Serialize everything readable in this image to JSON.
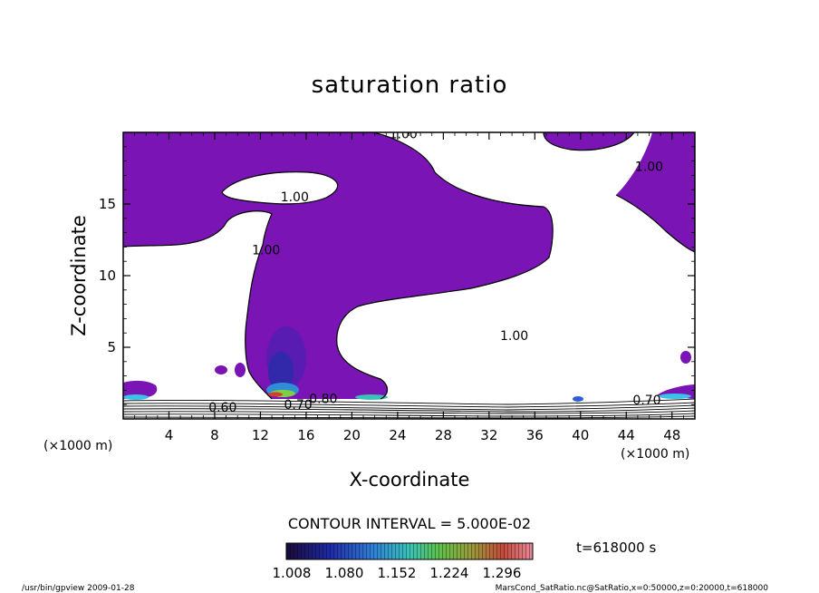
{
  "chart_data": {
    "type": "heatmap",
    "title": "saturation ratio",
    "xlabel": "X-coordinate",
    "ylabel": "Z-coordinate",
    "x_unit": "(×1000 m)",
    "x_unit_right": "(×1000 m)",
    "xlim": [
      0,
      50
    ],
    "ylim": [
      0,
      20
    ],
    "x_ticks": [
      4,
      8,
      12,
      16,
      20,
      24,
      28,
      32,
      36,
      40,
      44,
      48
    ],
    "y_ticks": [
      5,
      10,
      15
    ],
    "contour_labels": [
      {
        "text": "1.00",
        "x": 24.5,
        "y": 19.6
      },
      {
        "text": "1.00",
        "x": 15.0,
        "y": 15.2
      },
      {
        "text": "1.00",
        "x": 12.5,
        "y": 11.5
      },
      {
        "text": "1.00",
        "x": 34.2,
        "y": 5.5
      },
      {
        "text": "1.00",
        "x": 46.0,
        "y": 17.3
      },
      {
        "text": "0.60",
        "x": 8.7,
        "y": 0.5
      },
      {
        "text": "0.70",
        "x": 15.3,
        "y": 0.7
      },
      {
        "text": "0.80",
        "x": 17.5,
        "y": 1.1
      },
      {
        "text": "0.70",
        "x": 45.8,
        "y": 1.0
      }
    ],
    "contour_interval": "CONTOUR INTERVAL = 5.000E-02",
    "colorbar": {
      "ticks": [
        "1.008",
        "1.080",
        "1.152",
        "1.224",
        "1.296"
      ],
      "min": 1.008,
      "max": 1.296
    },
    "time_label": "t=618000 s"
  },
  "footer": {
    "left": "/usr/bin/gpview   2009-01-28",
    "right": "MarsCond_SatRatio.nc@SatRatio,x=0:50000,z=0:20000,t=618000"
  },
  "colors": {
    "fill": "#7a14b4",
    "background": "#ffffff",
    "frame": "#000000"
  }
}
